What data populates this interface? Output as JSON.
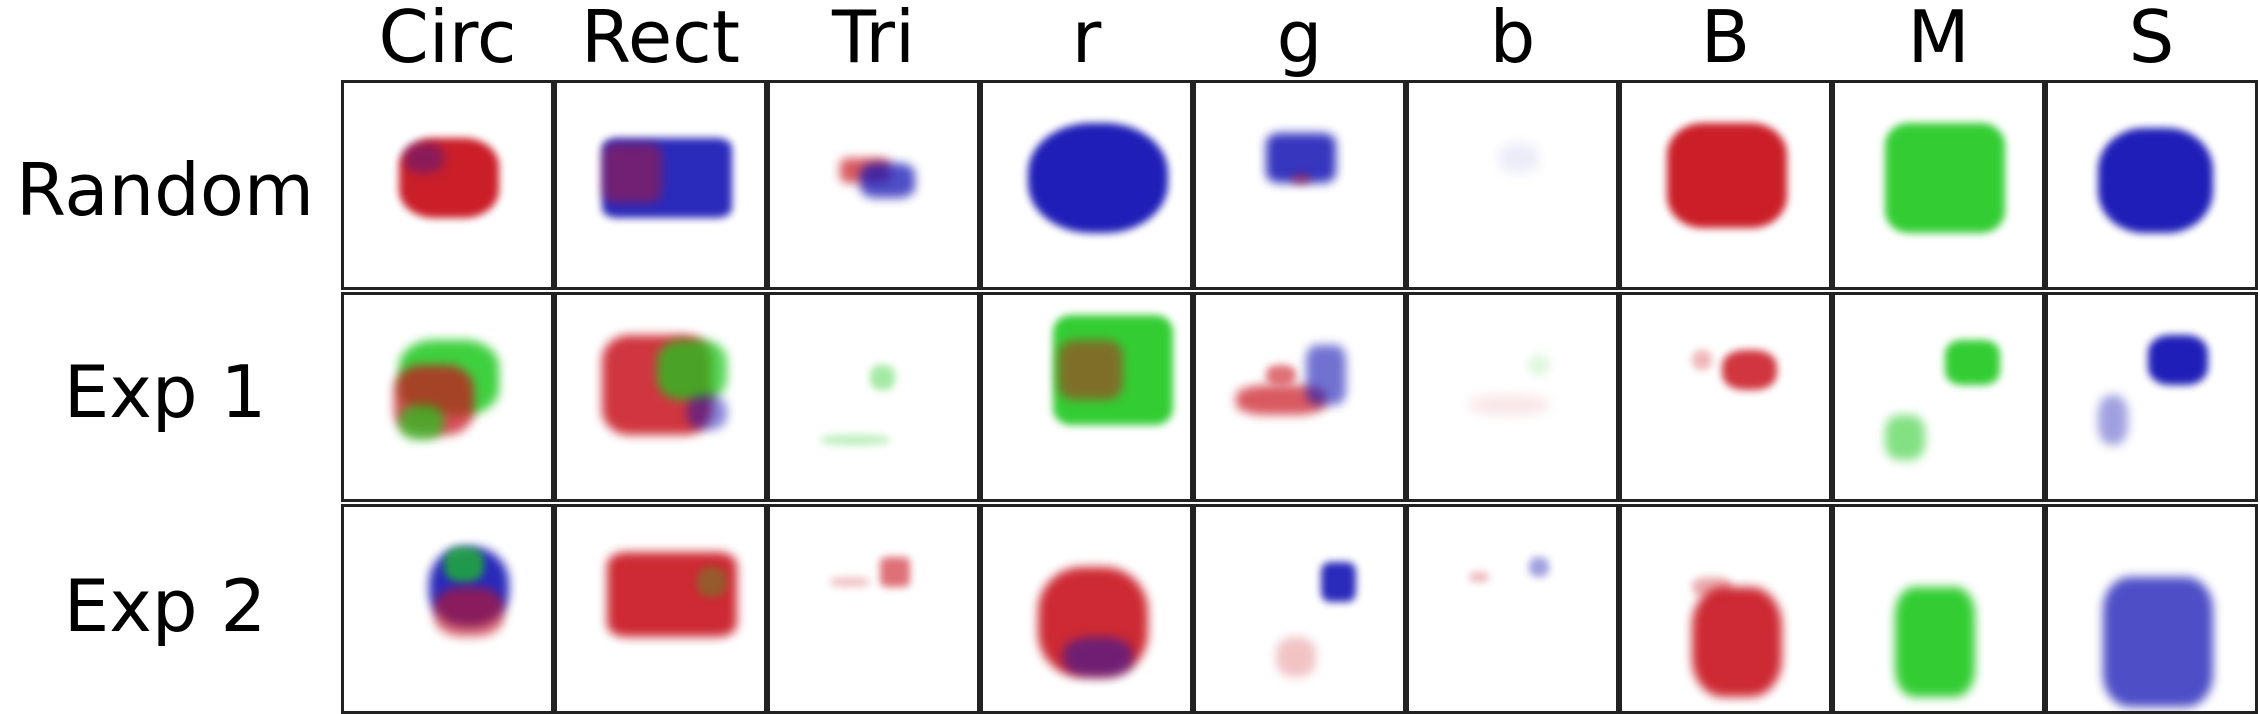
{
  "columns": [
    "Circ",
    "Rect",
    "Tri",
    "r",
    "g",
    "b",
    "B",
    "M",
    "S"
  ],
  "rows": [
    "Random",
    "Exp 1",
    "Exp 2"
  ],
  "colors": {
    "red": "#c8141e",
    "green": "#1ec81e",
    "blue": "#1414b4",
    "grid_line": "#222222"
  },
  "cells": [
    [
      {
        "content": "red blob with blue tint"
      },
      {
        "content": "blue-purple rectangle"
      },
      {
        "content": "small red-blue blob"
      },
      {
        "content": "large blue circle"
      },
      {
        "content": "small blue patch"
      },
      {
        "content": "very faint"
      },
      {
        "content": "red blob"
      },
      {
        "content": "green blob"
      },
      {
        "content": "blue blob"
      }
    ],
    [
      {
        "content": "green-red blob"
      },
      {
        "content": "red-green-blue blob"
      },
      {
        "content": "faint triangle"
      },
      {
        "content": "green-red rectangle"
      },
      {
        "content": "red-blue fragments"
      },
      {
        "content": "very faint"
      },
      {
        "content": "small red blob"
      },
      {
        "content": "small green blob"
      },
      {
        "content": "small blue blob"
      }
    ],
    [
      {
        "content": "blue-green-red circle"
      },
      {
        "content": "red rectangle"
      },
      {
        "content": "faint red triangle"
      },
      {
        "content": "red-blue blob"
      },
      {
        "content": "small blue triangle"
      },
      {
        "content": "faint purple marks"
      },
      {
        "content": "red blob"
      },
      {
        "content": "green shape"
      },
      {
        "content": "blue scattered shape"
      }
    ]
  ]
}
